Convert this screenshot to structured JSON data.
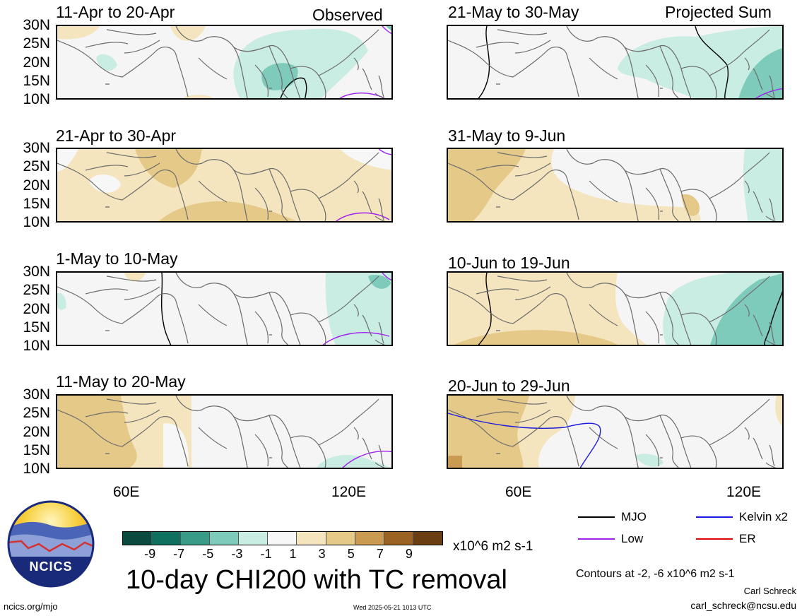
{
  "panels_left_header": "Observed",
  "panels_right_header": "Projected Sum",
  "panels": [
    {
      "title": "11-Apr to 20-Apr"
    },
    {
      "title": "21-May to 30-May"
    },
    {
      "title": "21-Apr to 30-Apr"
    },
    {
      "title": "31-May to 9-Jun"
    },
    {
      "title": "1-May to 10-May"
    },
    {
      "title": "10-Jun to 19-Jun"
    },
    {
      "title": "11-May to 20-May"
    },
    {
      "title": "20-Jun to 29-Jun"
    }
  ],
  "lat_labels": [
    "30N",
    "25N",
    "20N",
    "15N",
    "10N"
  ],
  "lon_labels": [
    "60E",
    "120E"
  ],
  "colorbar": {
    "colors": [
      "#0b4a3f",
      "#0f7060",
      "#3a9a88",
      "#7fcbbb",
      "#c9ece3",
      "#f7f7f7",
      "#f5e5bf",
      "#e5c989",
      "#c99a4f",
      "#9a6323",
      "#6a3e10"
    ],
    "tick_labels": [
      "-9",
      "-7",
      "-5",
      "-3",
      "-1",
      "1",
      "3",
      "5",
      "7",
      "9"
    ],
    "units": "x10^6 m2 s-1"
  },
  "main_title": "10-day CHI200 with TC removal",
  "legend": [
    {
      "label": "MJO",
      "color": "#000000"
    },
    {
      "label": "Kelvin x2",
      "color": "#1a1adf"
    },
    {
      "label": "Low",
      "color": "#a020f0"
    },
    {
      "label": "ER",
      "color": "#e00000"
    }
  ],
  "contour_note": "Contours at -2, -6 x10^6 m2 s-1",
  "author_name": "Carl Schreck",
  "author_email": "carl_schreck@ncsu.edu",
  "site": "ncics.org/mjo",
  "timestamp": "Wed 2025-05-21 1013 UTC",
  "logo_text": "NCICS"
}
